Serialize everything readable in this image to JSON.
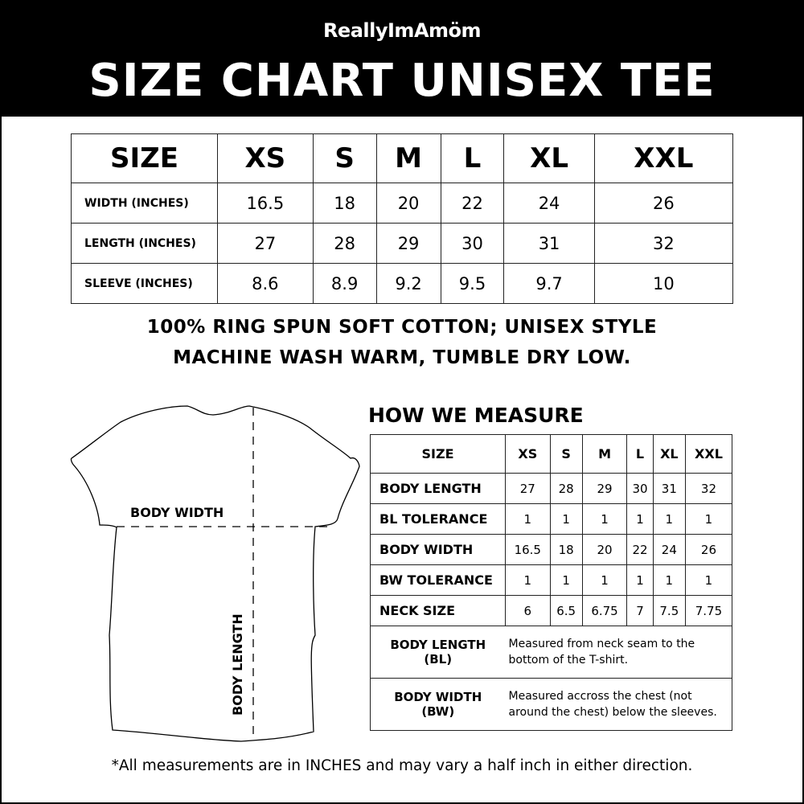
{
  "header": {
    "brand": "ReallyImAmöm",
    "title": "SIZE CHART UNISEX TEE"
  },
  "size_table": {
    "headers": [
      "SIZE",
      "XS",
      "S",
      "M",
      "L",
      "XL",
      "XXL"
    ],
    "rows": [
      {
        "label": "WIDTH (INCHES)",
        "values": [
          "16.5",
          "18",
          "20",
          "22",
          "24",
          "26"
        ]
      },
      {
        "label": "LENGTH (INCHES)",
        "values": [
          "27",
          "28",
          "29",
          "30",
          "31",
          "32"
        ]
      },
      {
        "label": "SLEEVE (INCHES)",
        "values": [
          "8.6",
          "8.9",
          "9.2",
          "9.5",
          "9.7",
          "10"
        ]
      }
    ]
  },
  "notes": {
    "line1": "100% RING SPUN SOFT COTTON; UNISEX STYLE",
    "line2": "MACHINE WASH WARM, TUMBLE DRY LOW."
  },
  "diagram": {
    "body_width": "BODY WIDTH",
    "body_length": "BODY LENGTH"
  },
  "measure": {
    "title": "HOW WE MEASURE",
    "headers": [
      "SIZE",
      "XS",
      "S",
      "M",
      "L",
      "XL",
      "XXL"
    ],
    "rows": [
      {
        "label": "BODY LENGTH",
        "values": [
          "27",
          "28",
          "29",
          "30",
          "31",
          "32"
        ]
      },
      {
        "label": "BL TOLERANCE",
        "values": [
          "1",
          "1",
          "1",
          "1",
          "1",
          "1"
        ]
      },
      {
        "label": "BODY WIDTH",
        "values": [
          "16.5",
          "18",
          "20",
          "22",
          "24",
          "26"
        ]
      },
      {
        "label": "BW TOLERANCE",
        "values": [
          "1",
          "1",
          "1",
          "1",
          "1",
          "1"
        ]
      },
      {
        "label": "NECK SIZE",
        "values": [
          "6",
          "6.5",
          "6.75",
          "7",
          "7.5",
          "7.75"
        ]
      }
    ],
    "definitions": [
      {
        "term": "BODY LENGTH",
        "abbr": "(BL)",
        "desc1": "Measured from neck seam to the",
        "desc2": "bottom of the T-shirt."
      },
      {
        "term": "BODY WIDTH",
        "abbr": "(BW)",
        "desc1": "Measured accross the chest (not",
        "desc2": "around the chest) below the sleeves."
      }
    ]
  },
  "footer": "*All measurements are in INCHES and may vary a half inch in either direction."
}
